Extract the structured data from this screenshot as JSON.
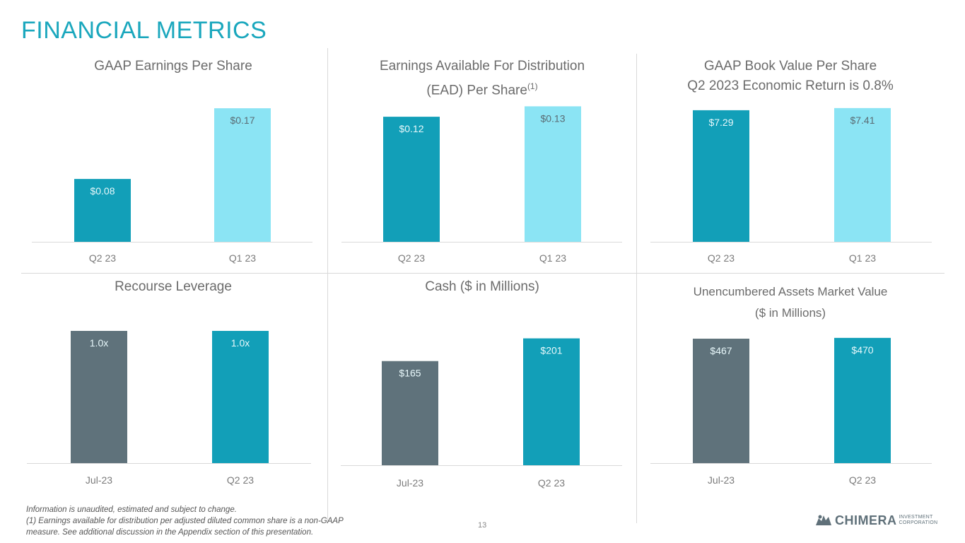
{
  "page": {
    "title": "FINANCIAL METRICS",
    "page_number": "13",
    "footnote_line1": "Information is unaudited, estimated and subject to change.",
    "footnote_line2": "(1) Earnings available for distribution per adjusted diluted common share is a non-GAAP measure. See additional discussion in the Appendix section of this presentation.",
    "logo_word": "CHIMERA",
    "logo_sub1": "INVESTMENT",
    "logo_sub2": "CORPORATION"
  },
  "colors": {
    "teal": "#129fb8",
    "light_teal": "#8be4f4",
    "slate": "#5f727b",
    "label_light": "#e8f8fb",
    "label_dark": "#5a6b73",
    "axis": "#d9d9d9",
    "tick": "#7a7a7a"
  },
  "chart_data": [
    {
      "id": "gaap-eps",
      "type": "bar",
      "title_line1": "GAAP Earnings Per Share",
      "categories": [
        "Q2 23",
        "Q1 23"
      ],
      "values": [
        0.08,
        0.17
      ],
      "labels": [
        "$0.08",
        "$0.17"
      ],
      "ylim": [
        0,
        0.18
      ]
    },
    {
      "id": "ead-per-share",
      "type": "bar",
      "title_line1": "Earnings Available For Distribution",
      "title_line2": "(EAD) Per Share",
      "title_sup": "(1)",
      "categories": [
        "Q2 23",
        "Q1 23"
      ],
      "values": [
        0.12,
        0.13
      ],
      "labels": [
        "$0.12",
        "$0.13"
      ],
      "ylim": [
        0,
        0.135
      ]
    },
    {
      "id": "book-value",
      "type": "bar",
      "title_line1": "GAAP Book Value Per Share",
      "title_line2": "Q2 2023 Economic Return is 0.8%",
      "categories": [
        "Q2 23",
        "Q1 23"
      ],
      "values": [
        7.29,
        7.41
      ],
      "labels": [
        "$7.29",
        "$7.41"
      ],
      "ylim": [
        0,
        7.6
      ]
    },
    {
      "id": "recourse-leverage",
      "type": "bar",
      "title_line1": "Recourse Leverage",
      "categories": [
        "Jul-23",
        "Q2 23"
      ],
      "values": [
        1.0,
        1.0
      ],
      "labels": [
        "1.0x",
        "1.0x"
      ],
      "ylim": [
        0,
        1.0
      ]
    },
    {
      "id": "cash",
      "type": "bar",
      "title_line1": "Cash ($ in Millions)",
      "categories": [
        "Jul-23",
        "Q2 23"
      ],
      "values": [
        165,
        201
      ],
      "labels": [
        "$165",
        "$201"
      ],
      "ylim": [
        0,
        205
      ]
    },
    {
      "id": "unencumbered-assets",
      "type": "bar",
      "title_line1": "Unencumbered Assets Market Value",
      "title_line2": "($ in Millions)",
      "categories": [
        "Jul-23",
        "Q2 23"
      ],
      "values": [
        467,
        470
      ],
      "labels": [
        "$467",
        "$470"
      ],
      "ylim": [
        0,
        475
      ]
    }
  ]
}
